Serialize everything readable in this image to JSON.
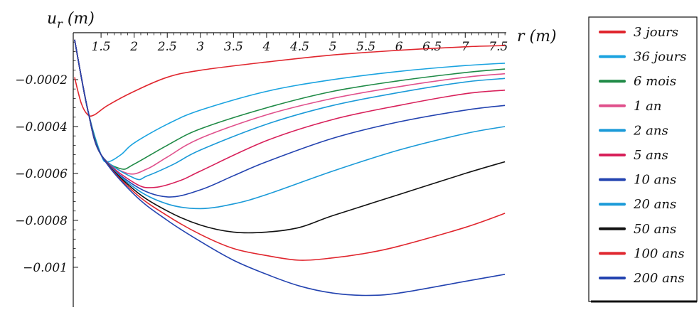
{
  "chart_data": {
    "type": "line",
    "title": "",
    "xlabel": "r (m)",
    "ylabel": "u_r (m)",
    "xlim": [
      1.08,
      7.62
    ],
    "ylim": [
      -0.00117,
      0.0
    ],
    "x_ticks": [
      {
        "value": 1.5,
        "label": "1.5"
      },
      {
        "value": 2,
        "label": "2"
      },
      {
        "value": 2.5,
        "label": "2.5"
      },
      {
        "value": 3,
        "label": "3"
      },
      {
        "value": 3.5,
        "label": "3.5"
      },
      {
        "value": 4,
        "label": "4"
      },
      {
        "value": 4.5,
        "label": "4.5"
      },
      {
        "value": 5,
        "label": "5"
      },
      {
        "value": 5.5,
        "label": "5.5"
      },
      {
        "value": 6,
        "label": "6"
      },
      {
        "value": 6.5,
        "label": "6.5"
      },
      {
        "value": 7,
        "label": "7"
      },
      {
        "value": 7.5,
        "label": "7.5"
      }
    ],
    "y_ticks": [
      {
        "value": -0.0002,
        "label": "−0.0002"
      },
      {
        "value": -0.0004,
        "label": "−0.0004"
      },
      {
        "value": -0.0006,
        "label": "−0.0006"
      },
      {
        "value": -0.0008,
        "label": "−0.0008"
      },
      {
        "value": -0.001,
        "label": "−0.001"
      }
    ],
    "legend_position": "right",
    "grid": false,
    "series": [
      {
        "name": "3 jours",
        "color": "#e0262e",
        "points": [
          [
            1.1,
            -0.00019
          ],
          [
            1.2,
            -0.0003
          ],
          [
            1.3,
            -0.00035
          ],
          [
            1.4,
            -0.00035
          ],
          [
            1.6,
            -0.00031
          ],
          [
            2.0,
            -0.00025
          ],
          [
            2.5,
            -0.00019
          ],
          [
            3.0,
            -0.00016
          ],
          [
            4.0,
            -0.000125
          ],
          [
            5.0,
            -9.5e-05
          ],
          [
            6.0,
            -7.5e-05
          ],
          [
            7.0,
            -6e-05
          ],
          [
            7.6,
            -5.5e-05
          ]
        ]
      },
      {
        "name": "36 jours",
        "color": "#1aa3e0",
        "points": [
          [
            1.1,
            -3e-05
          ],
          [
            1.3,
            -0.00033
          ],
          [
            1.5,
            -0.00052
          ],
          [
            1.6,
            -0.00055
          ],
          [
            1.8,
            -0.00052
          ],
          [
            2.0,
            -0.00047
          ],
          [
            2.5,
            -0.00039
          ],
          [
            3.0,
            -0.00033
          ],
          [
            4.0,
            -0.00025
          ],
          [
            5.0,
            -0.0002
          ],
          [
            6.0,
            -0.000165
          ],
          [
            7.0,
            -0.00014
          ],
          [
            7.6,
            -0.00013
          ]
        ]
      },
      {
        "name": "6 mois",
        "color": "#1f8a46",
        "points": [
          [
            1.1,
            -3e-05
          ],
          [
            1.3,
            -0.00033
          ],
          [
            1.5,
            -0.00052
          ],
          [
            1.8,
            -0.00058
          ],
          [
            2.0,
            -0.00056
          ],
          [
            2.5,
            -0.00048
          ],
          [
            3.0,
            -0.00041
          ],
          [
            4.0,
            -0.00032
          ],
          [
            5.0,
            -0.00025
          ],
          [
            6.0,
            -0.000205
          ],
          [
            7.0,
            -0.00017
          ],
          [
            7.6,
            -0.000155
          ]
        ]
      },
      {
        "name": "1 an",
        "color": "#e0508c",
        "points": [
          [
            1.1,
            -3e-05
          ],
          [
            1.3,
            -0.00033
          ],
          [
            1.5,
            -0.00052
          ],
          [
            1.9,
            -0.0006
          ],
          [
            2.2,
            -0.00058
          ],
          [
            2.5,
            -0.00053
          ],
          [
            3.0,
            -0.00045
          ],
          [
            4.0,
            -0.00035
          ],
          [
            5.0,
            -0.00028
          ],
          [
            6.0,
            -0.00023
          ],
          [
            7.0,
            -0.00019
          ],
          [
            7.6,
            -0.000175
          ]
        ]
      },
      {
        "name": "2 ans",
        "color": "#1a9ad8",
        "points": [
          [
            1.1,
            -3e-05
          ],
          [
            1.3,
            -0.00033
          ],
          [
            1.5,
            -0.00052
          ],
          [
            2.0,
            -0.00062
          ],
          [
            2.2,
            -0.00061
          ],
          [
            2.6,
            -0.00056
          ],
          [
            3.0,
            -0.0005
          ],
          [
            4.0,
            -0.00039
          ],
          [
            5.0,
            -0.00031
          ],
          [
            6.0,
            -0.000255
          ],
          [
            7.0,
            -0.00021
          ],
          [
            7.6,
            -0.000195
          ]
        ]
      },
      {
        "name": "5 ans",
        "color": "#d8205a",
        "points": [
          [
            1.1,
            -3e-05
          ],
          [
            1.3,
            -0.00033
          ],
          [
            1.5,
            -0.00052
          ],
          [
            2.0,
            -0.00064
          ],
          [
            2.3,
            -0.00066
          ],
          [
            2.7,
            -0.00063
          ],
          [
            3.0,
            -0.00059
          ],
          [
            4.0,
            -0.00046
          ],
          [
            5.0,
            -0.00037
          ],
          [
            6.0,
            -0.00031
          ],
          [
            7.0,
            -0.00026
          ],
          [
            7.6,
            -0.000245
          ]
        ]
      },
      {
        "name": "10 ans",
        "color": "#2343b0",
        "points": [
          [
            1.1,
            -3e-05
          ],
          [
            1.3,
            -0.00033
          ],
          [
            1.5,
            -0.00052
          ],
          [
            2.0,
            -0.00065
          ],
          [
            2.5,
            -0.0007
          ],
          [
            3.0,
            -0.00067
          ],
          [
            3.5,
            -0.00061
          ],
          [
            4.0,
            -0.00055
          ],
          [
            5.0,
            -0.00045
          ],
          [
            6.0,
            -0.00038
          ],
          [
            7.0,
            -0.00033
          ],
          [
            7.6,
            -0.00031
          ]
        ]
      },
      {
        "name": "20 ans",
        "color": "#1a9ad8",
        "points": [
          [
            1.1,
            -3e-05
          ],
          [
            1.3,
            -0.00033
          ],
          [
            1.5,
            -0.00052
          ],
          [
            2.0,
            -0.00066
          ],
          [
            2.5,
            -0.00073
          ],
          [
            3.0,
            -0.00075
          ],
          [
            3.5,
            -0.00073
          ],
          [
            4.0,
            -0.00069
          ],
          [
            5.0,
            -0.00059
          ],
          [
            6.0,
            -0.0005
          ],
          [
            7.0,
            -0.00043
          ],
          [
            7.6,
            -0.0004
          ]
        ]
      },
      {
        "name": "50 ans",
        "color": "#111111",
        "points": [
          [
            1.1,
            -3e-05
          ],
          [
            1.3,
            -0.00033
          ],
          [
            1.5,
            -0.00052
          ],
          [
            2.0,
            -0.00067
          ],
          [
            2.5,
            -0.00076
          ],
          [
            3.0,
            -0.00082
          ],
          [
            3.5,
            -0.00085
          ],
          [
            4.0,
            -0.00085
          ],
          [
            4.5,
            -0.00083
          ],
          [
            5.0,
            -0.00078
          ],
          [
            6.0,
            -0.00069
          ],
          [
            7.0,
            -0.0006
          ],
          [
            7.6,
            -0.00055
          ]
        ]
      },
      {
        "name": "100 ans",
        "color": "#e0262e",
        "points": [
          [
            1.1,
            -3e-05
          ],
          [
            1.3,
            -0.00033
          ],
          [
            1.5,
            -0.00052
          ],
          [
            2.0,
            -0.00068
          ],
          [
            2.5,
            -0.00078
          ],
          [
            3.0,
            -0.00086
          ],
          [
            3.5,
            -0.00092
          ],
          [
            4.0,
            -0.00095
          ],
          [
            4.5,
            -0.00097
          ],
          [
            5.0,
            -0.00096
          ],
          [
            5.5,
            -0.00094
          ],
          [
            6.0,
            -0.00091
          ],
          [
            7.0,
            -0.00083
          ],
          [
            7.6,
            -0.00077
          ]
        ]
      },
      {
        "name": "200 ans",
        "color": "#2343b0",
        "points": [
          [
            1.1,
            -3e-05
          ],
          [
            1.3,
            -0.00033
          ],
          [
            1.5,
            -0.00052
          ],
          [
            2.0,
            -0.00069
          ],
          [
            2.5,
            -0.0008
          ],
          [
            3.0,
            -0.00089
          ],
          [
            3.5,
            -0.00097
          ],
          [
            4.0,
            -0.00103
          ],
          [
            4.5,
            -0.00108
          ],
          [
            5.0,
            -0.00111
          ],
          [
            5.5,
            -0.00112
          ],
          [
            6.0,
            -0.00111
          ],
          [
            7.0,
            -0.00106
          ],
          [
            7.6,
            -0.00103
          ]
        ]
      }
    ]
  }
}
